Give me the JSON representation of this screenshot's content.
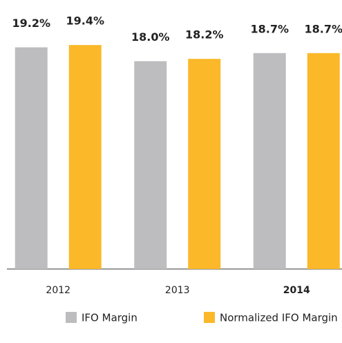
{
  "chart_data": {
    "type": "bar",
    "categories": [
      "2012",
      "2013",
      "2014"
    ],
    "category_colors": [
      "#222222",
      "#222222",
      "#f6b223"
    ],
    "series": [
      {
        "name": "IFO Margin",
        "color": "#bdbdbf",
        "values": [
          19.2,
          18.0,
          18.7
        ],
        "value_labels": [
          "19.2%",
          "18.0%",
          "18.7%"
        ]
      },
      {
        "name": "Normalized IFO Margin",
        "color": "#fbb829",
        "values": [
          19.4,
          18.2,
          18.7
        ],
        "value_labels": [
          "19.4%",
          "18.2%",
          "18.7%"
        ]
      }
    ],
    "ylim": [
      0,
      23.3
    ]
  }
}
